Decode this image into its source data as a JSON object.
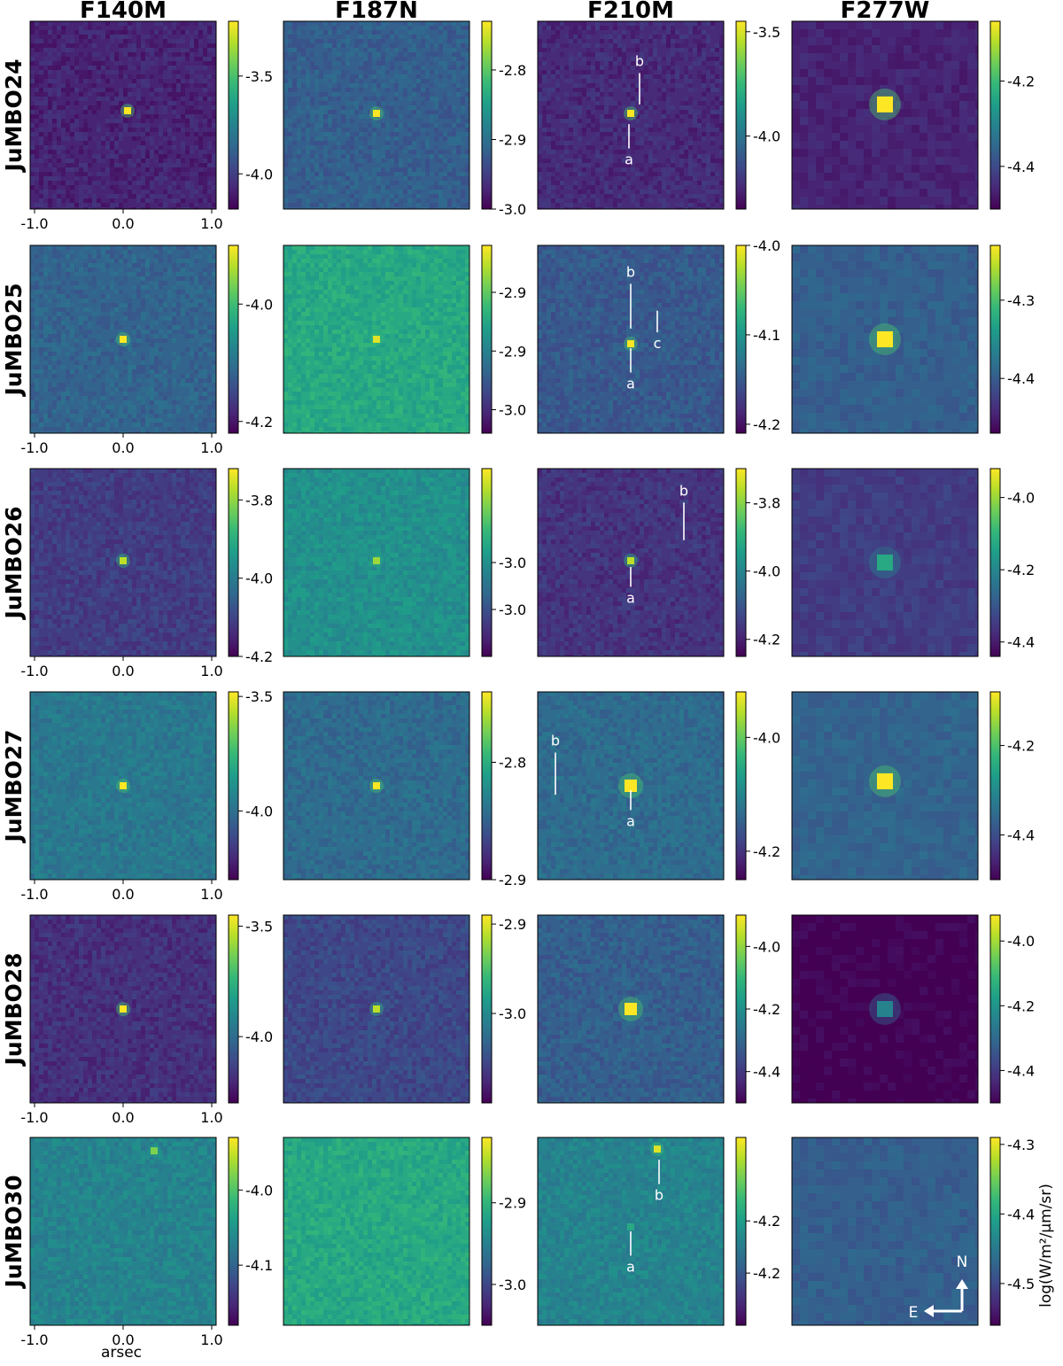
{
  "chart_data": {
    "type": "heatmap",
    "title": "",
    "columns": [
      "F140M",
      "F187N",
      "F210M",
      "F277W"
    ],
    "rows": [
      "JuMBO24",
      "JuMBO25",
      "JuMBO26",
      "JuMBO27",
      "JuMBO28",
      "JuMBO30"
    ],
    "xlabel": "arsec",
    "x_ticks": [
      "-1.0",
      "0.0",
      "1.0"
    ],
    "x_tick_values": [
      -1.0,
      0.0,
      1.0
    ],
    "xlim": [
      -1.05,
      1.05
    ],
    "colorbar_label": "log(W/m²/μm/sr)",
    "colormap": [
      "#440154",
      "#482878",
      "#3e4989",
      "#31688e",
      "#26828e",
      "#1f9e89",
      "#35b779",
      "#6ece58",
      "#b5de2b",
      "#fde725"
    ],
    "compass": {
      "north": "N",
      "east": "E"
    },
    "panels": [
      {
        "row": "JuMBO24",
        "band": "F140M",
        "cbar_ticks": [
          "-3.5",
          "-4.0"
        ],
        "cbar_tick_values": [
          -3.5,
          -4.0
        ],
        "clim": [
          -4.18,
          -3.22
        ],
        "background_level": 0.1,
        "sources": [
          {
            "x": 0.05,
            "y": 0.05,
            "peak": 1.0,
            "size": "small"
          }
        ],
        "labels": []
      },
      {
        "row": "JuMBO24",
        "band": "F187N",
        "cbar_ticks": [
          "-2.8",
          "-2.9",
          "-3.0"
        ],
        "cbar_tick_values": [
          -2.8,
          -2.9,
          -3.0
        ],
        "clim": [
          -3.0,
          -2.73
        ],
        "background_level": 0.3,
        "sources": [
          {
            "x": 0.0,
            "y": 0.02,
            "peak": 1.0,
            "size": "small"
          }
        ],
        "labels": []
      },
      {
        "row": "JuMBO24",
        "band": "F210M",
        "cbar_ticks": [
          "-3.5",
          "-4.0"
        ],
        "cbar_tick_values": [
          -3.5,
          -4.0
        ],
        "clim": [
          -4.35,
          -3.45
        ],
        "background_level": 0.12,
        "sources": [
          {
            "x": 0.0,
            "y": 0.02,
            "peak": 1.0,
            "size": "small"
          }
        ],
        "labels": [
          {
            "text": "b",
            "x": 0.1,
            "y": 0.55,
            "line_to_y": 0.12
          },
          {
            "text": "a",
            "x": -0.02,
            "y": -0.55,
            "line_to_y": -0.1
          }
        ]
      },
      {
        "row": "JuMBO24",
        "band": "F277W",
        "cbar_ticks": [
          "-4.2",
          "-4.4"
        ],
        "cbar_tick_values": [
          -4.2,
          -4.4
        ],
        "clim": [
          -4.5,
          -4.06
        ],
        "background_level": 0.1,
        "sources": [
          {
            "x": 0.0,
            "y": 0.12,
            "peak": 1.0,
            "size": "large"
          }
        ],
        "labels": []
      },
      {
        "row": "JuMBO25",
        "band": "F140M",
        "cbar_ticks": [
          "-4.0",
          "-4.2"
        ],
        "cbar_tick_values": [
          -4.0,
          -4.2
        ],
        "clim": [
          -4.22,
          -3.9
        ],
        "background_level": 0.32,
        "sources": [
          {
            "x": 0.0,
            "y": 0.0,
            "peak": 1.0,
            "size": "small"
          }
        ],
        "labels": []
      },
      {
        "row": "JuMBO25",
        "band": "F187N",
        "cbar_ticks": [
          "-2.9",
          "-2.9",
          "-3.0"
        ],
        "cbar_tick_values": [
          -2.9,
          -2.95,
          -3.0
        ],
        "clim": [
          -3.02,
          -2.86
        ],
        "background_level": 0.6,
        "sources": [
          {
            "x": 0.0,
            "y": 0.0,
            "peak": 0.95,
            "size": "small"
          }
        ],
        "labels": []
      },
      {
        "row": "JuMBO25",
        "band": "F210M",
        "cbar_ticks": [
          "-4.0",
          "-4.1",
          "-4.2"
        ],
        "cbar_tick_values": [
          -4.0,
          -4.1,
          -4.2
        ],
        "clim": [
          -4.21,
          -4.0
        ],
        "background_level": 0.28,
        "sources": [
          {
            "x": 0.0,
            "y": -0.05,
            "peak": 1.0,
            "size": "small"
          }
        ],
        "labels": [
          {
            "text": "b",
            "x": 0.0,
            "y": 0.7,
            "line_to_y": 0.12
          },
          {
            "text": "c",
            "x": 0.3,
            "y": -0.1,
            "line_to_y": 0.32
          },
          {
            "text": "a",
            "x": 0.0,
            "y": -0.55,
            "line_to_y": -0.1
          }
        ]
      },
      {
        "row": "JuMBO25",
        "band": "F277W",
        "cbar_ticks": [
          "-4.3",
          "-4.4"
        ],
        "cbar_tick_values": [
          -4.3,
          -4.4
        ],
        "clim": [
          -4.47,
          -4.23
        ],
        "background_level": 0.3,
        "sources": [
          {
            "x": 0.0,
            "y": 0.0,
            "peak": 1.0,
            "size": "large"
          }
        ],
        "labels": []
      },
      {
        "row": "JuMBO26",
        "band": "F140M",
        "cbar_ticks": [
          "-3.8",
          "-4.0",
          "-4.2"
        ],
        "cbar_tick_values": [
          -3.8,
          -4.0,
          -4.2
        ],
        "clim": [
          -4.2,
          -3.72
        ],
        "background_level": 0.18,
        "sources": [
          {
            "x": 0.0,
            "y": 0.02,
            "peak": 0.9,
            "size": "small"
          }
        ],
        "labels": []
      },
      {
        "row": "JuMBO26",
        "band": "F187N",
        "cbar_ticks": [
          "-3.0",
          "-3.0"
        ],
        "cbar_tick_values": [
          -3.0,
          -3.05
        ],
        "clim": [
          -3.1,
          -2.9
        ],
        "background_level": 0.5,
        "sources": [
          {
            "x": 0.0,
            "y": 0.02,
            "peak": 0.85,
            "size": "small"
          }
        ],
        "labels": []
      },
      {
        "row": "JuMBO26",
        "band": "F210M",
        "cbar_ticks": [
          "-3.8",
          "-4.0",
          "-4.2"
        ],
        "cbar_tick_values": [
          -3.8,
          -4.0,
          -4.2
        ],
        "clim": [
          -4.25,
          -3.7
        ],
        "background_level": 0.15,
        "sources": [
          {
            "x": 0.0,
            "y": 0.02,
            "peak": 0.9,
            "size": "small"
          }
        ],
        "labels": [
          {
            "text": "b",
            "x": 0.6,
            "y": 0.75,
            "line_to_y": 0.25
          },
          {
            "text": "a",
            "x": 0.0,
            "y": -0.45,
            "line_to_y": -0.05
          }
        ]
      },
      {
        "row": "JuMBO26",
        "band": "F277W",
        "cbar_ticks": [
          "-4.0",
          "-4.2",
          "-4.4"
        ],
        "cbar_tick_values": [
          -4.0,
          -4.2,
          -4.4
        ],
        "clim": [
          -4.44,
          -3.92
        ],
        "background_level": 0.18,
        "sources": [
          {
            "x": 0.0,
            "y": 0.0,
            "peak": 0.6,
            "size": "large"
          }
        ],
        "labels": []
      },
      {
        "row": "JuMBO27",
        "band": "F140M",
        "cbar_ticks": [
          "-3.5",
          "-4.0"
        ],
        "cbar_tick_values": [
          -3.5,
          -4.0
        ],
        "clim": [
          -4.3,
          -3.48
        ],
        "background_level": 0.4,
        "sources": [
          {
            "x": 0.0,
            "y": 0.0,
            "peak": 1.0,
            "size": "small"
          }
        ],
        "labels": []
      },
      {
        "row": "JuMBO27",
        "band": "F187N",
        "cbar_ticks": [
          "-2.8",
          "-2.9"
        ],
        "cbar_tick_values": [
          -2.8,
          -2.9
        ],
        "clim": [
          -2.9,
          -2.74
        ],
        "background_level": 0.35,
        "sources": [
          {
            "x": 0.0,
            "y": 0.0,
            "peak": 1.0,
            "size": "small"
          }
        ],
        "labels": []
      },
      {
        "row": "JuMBO27",
        "band": "F210M",
        "cbar_ticks": [
          "-4.0",
          "-4.2"
        ],
        "cbar_tick_values": [
          -4.0,
          -4.2
        ],
        "clim": [
          -4.25,
          -3.92
        ],
        "background_level": 0.35,
        "sources": [
          {
            "x": 0.0,
            "y": 0.0,
            "peak": 1.0,
            "size": "medium"
          }
        ],
        "labels": [
          {
            "text": "b",
            "x": -0.85,
            "y": 0.45,
            "line_to_y": -0.1
          },
          {
            "text": "a",
            "x": 0.0,
            "y": -0.45,
            "line_to_y": -0.05
          }
        ]
      },
      {
        "row": "JuMBO27",
        "band": "F277W",
        "cbar_ticks": [
          "-4.2",
          "-4.4"
        ],
        "cbar_tick_values": [
          -4.2,
          -4.4
        ],
        "clim": [
          -4.5,
          -4.08
        ],
        "background_level": 0.32,
        "sources": [
          {
            "x": 0.0,
            "y": 0.05,
            "peak": 1.0,
            "size": "large"
          }
        ],
        "labels": []
      },
      {
        "row": "JuMBO28",
        "band": "F140M",
        "cbar_ticks": [
          "-3.5",
          "-4.0"
        ],
        "cbar_tick_values": [
          -3.5,
          -4.0
        ],
        "clim": [
          -4.3,
          -3.45
        ],
        "background_level": 0.14,
        "sources": [
          {
            "x": 0.0,
            "y": 0.0,
            "peak": 1.0,
            "size": "small"
          }
        ],
        "labels": []
      },
      {
        "row": "JuMBO28",
        "band": "F187N",
        "cbar_ticks": [
          "-2.9",
          "-3.0"
        ],
        "cbar_tick_values": [
          -2.9,
          -3.0
        ],
        "clim": [
          -3.1,
          -2.89
        ],
        "background_level": 0.22,
        "sources": [
          {
            "x": 0.0,
            "y": 0.0,
            "peak": 0.9,
            "size": "small"
          }
        ],
        "labels": []
      },
      {
        "row": "JuMBO28",
        "band": "F210M",
        "cbar_ticks": [
          "-4.0",
          "-4.2",
          "-4.4"
        ],
        "cbar_tick_values": [
          -4.0,
          -4.2,
          -4.4
        ],
        "clim": [
          -4.5,
          -3.9
        ],
        "background_level": 0.3,
        "sources": [
          {
            "x": 0.0,
            "y": 0.0,
            "peak": 1.0,
            "size": "medium"
          }
        ],
        "labels": []
      },
      {
        "row": "JuMBO28",
        "band": "F277W",
        "cbar_ticks": [
          "-4.0",
          "-4.2",
          "-4.4"
        ],
        "cbar_tick_values": [
          -4.0,
          -4.2,
          -4.4
        ],
        "clim": [
          -4.5,
          -3.92
        ],
        "background_level": 0.0,
        "sources": [
          {
            "x": 0.0,
            "y": 0.0,
            "peak": 0.45,
            "size": "large"
          }
        ],
        "labels": []
      },
      {
        "row": "JuMBO30",
        "band": "F140M",
        "cbar_ticks": [
          "-4.0",
          "-4.1"
        ],
        "cbar_tick_values": [
          -4.0,
          -4.1
        ],
        "clim": [
          -4.18,
          -3.93
        ],
        "background_level": 0.45,
        "sources": [
          {
            "x": 0.35,
            "y": 0.9,
            "peak": 0.8,
            "size": "small"
          }
        ],
        "labels": []
      },
      {
        "row": "JuMBO30",
        "band": "F187N",
        "cbar_ticks": [
          "-2.9",
          "-3.0"
        ],
        "cbar_tick_values": [
          -2.9,
          -3.0
        ],
        "clim": [
          -3.05,
          -2.82
        ],
        "background_level": 0.6,
        "sources": [],
        "labels": []
      },
      {
        "row": "JuMBO30",
        "band": "F210M",
        "cbar_ticks": [
          "-4.2",
          "-4.2"
        ],
        "cbar_tick_values": [
          -4.2,
          -4.25
        ],
        "clim": [
          -4.3,
          -4.12
        ],
        "background_level": 0.45,
        "sources": [
          {
            "x": 0.3,
            "y": 0.92,
            "peak": 0.95,
            "size": "small"
          },
          {
            "x": 0.0,
            "y": 0.05,
            "peak": 0.6,
            "size": "small"
          }
        ],
        "labels": [
          {
            "text": "b",
            "x": 0.32,
            "y": 0.35,
            "line_to_y": 0.8
          },
          {
            "text": "a",
            "x": 0.0,
            "y": -0.45,
            "line_to_y": -0.0
          }
        ]
      },
      {
        "row": "JuMBO30",
        "band": "F277W",
        "cbar_ticks": [
          "-4.3",
          "-4.4",
          "-4.5"
        ],
        "cbar_tick_values": [
          -4.3,
          -4.4,
          -4.5
        ],
        "clim": [
          -4.56,
          -4.29
        ],
        "background_level": 0.3,
        "sources": [],
        "labels": []
      }
    ]
  }
}
